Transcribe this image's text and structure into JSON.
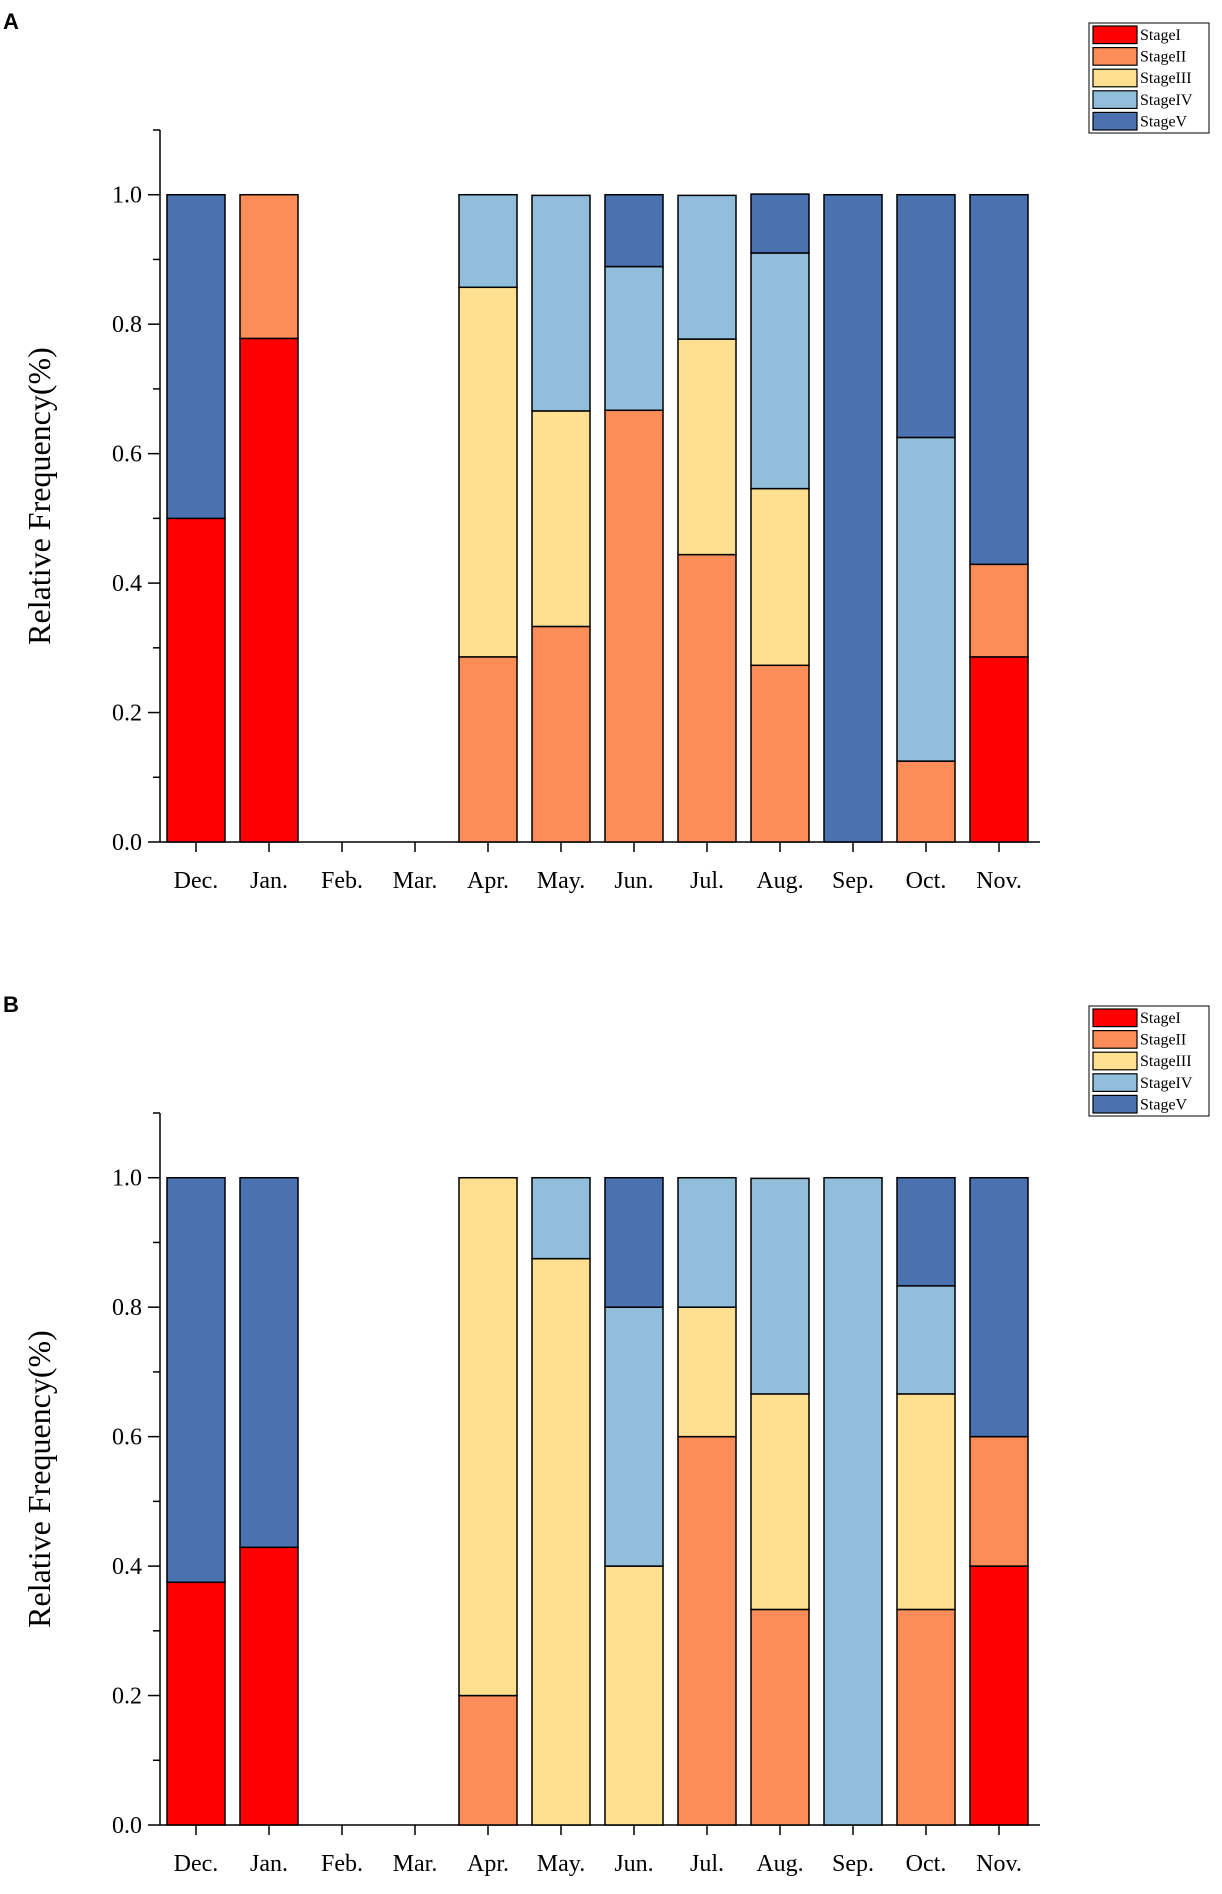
{
  "stage_colors": {
    "StageI": "#ff0000",
    "StageII": "#fc8d59",
    "StageIII": "#fee090",
    "StageIV": "#91bfdb",
    "StageV": "#4a72b0"
  },
  "chart_data": [
    {
      "panel": "A",
      "type": "bar",
      "stacked": true,
      "categories": [
        "Dec.",
        "Jan.",
        "Feb.",
        "Mar.",
        "Apr.",
        "May.",
        "Jun.",
        "Jul.",
        "Aug.",
        "Sep.",
        "Oct.",
        "Nov."
      ],
      "series": [
        {
          "name": "StageI",
          "values": [
            0.5,
            0.778,
            0,
            0,
            0,
            0,
            0,
            0,
            0,
            0,
            0,
            0.286
          ]
        },
        {
          "name": "StageII",
          "values": [
            0,
            0.222,
            0,
            0,
            0.286,
            0.333,
            0.667,
            0.444,
            0.273,
            0,
            0.125,
            0.143
          ]
        },
        {
          "name": "StageIII",
          "values": [
            0,
            0,
            0,
            0,
            0.571,
            0.333,
            0,
            0.333,
            0.273,
            0,
            0,
            0
          ]
        },
        {
          "name": "StageIV",
          "values": [
            0,
            0,
            0,
            0,
            0.143,
            0.333,
            0.222,
            0.222,
            0.364,
            0,
            0.5,
            0
          ]
        },
        {
          "name": "StageV",
          "values": [
            0.5,
            0,
            0,
            0,
            0,
            0,
            0.111,
            0,
            0.091,
            1.0,
            0.375,
            0.571
          ]
        }
      ],
      "ylabel": "Relative Frequency(%)",
      "xlabel": "",
      "ylim": [
        0,
        1.1
      ],
      "yticks": [
        "0.0",
        "0.2",
        "0.4",
        "0.6",
        "0.8",
        "1.0"
      ],
      "legend": "top-right"
    },
    {
      "panel": "B",
      "type": "bar",
      "stacked": true,
      "categories": [
        "Dec.",
        "Jan.",
        "Feb.",
        "Mar.",
        "Apr.",
        "May.",
        "Jun.",
        "Jul.",
        "Aug.",
        "Sep.",
        "Oct.",
        "Nov."
      ],
      "series": [
        {
          "name": "StageI",
          "values": [
            0.375,
            0.429,
            0,
            0,
            0,
            0,
            0,
            0,
            0,
            0,
            0,
            0.4
          ]
        },
        {
          "name": "StageII",
          "values": [
            0,
            0,
            0,
            0,
            0.2,
            0,
            0,
            0.6,
            0.333,
            0,
            0.333,
            0.2
          ]
        },
        {
          "name": "StageIII",
          "values": [
            0,
            0,
            0,
            0,
            0.8,
            0.875,
            0.4,
            0.2,
            0.333,
            0,
            0.333,
            0
          ]
        },
        {
          "name": "StageIV",
          "values": [
            0,
            0,
            0,
            0,
            0,
            0.125,
            0.4,
            0.2,
            0.333,
            1.0,
            0.167,
            0
          ]
        },
        {
          "name": "StageV",
          "values": [
            0.625,
            0.571,
            0,
            0,
            0,
            0,
            0.2,
            0,
            0,
            0,
            0.167,
            0.4
          ]
        }
      ],
      "ylabel": "Relative Frequency(%)",
      "xlabel": "",
      "ylim": [
        0,
        1.1
      ],
      "yticks": [
        "0.0",
        "0.2",
        "0.4",
        "0.6",
        "0.8",
        "1.0"
      ],
      "legend": "top-right"
    }
  ]
}
